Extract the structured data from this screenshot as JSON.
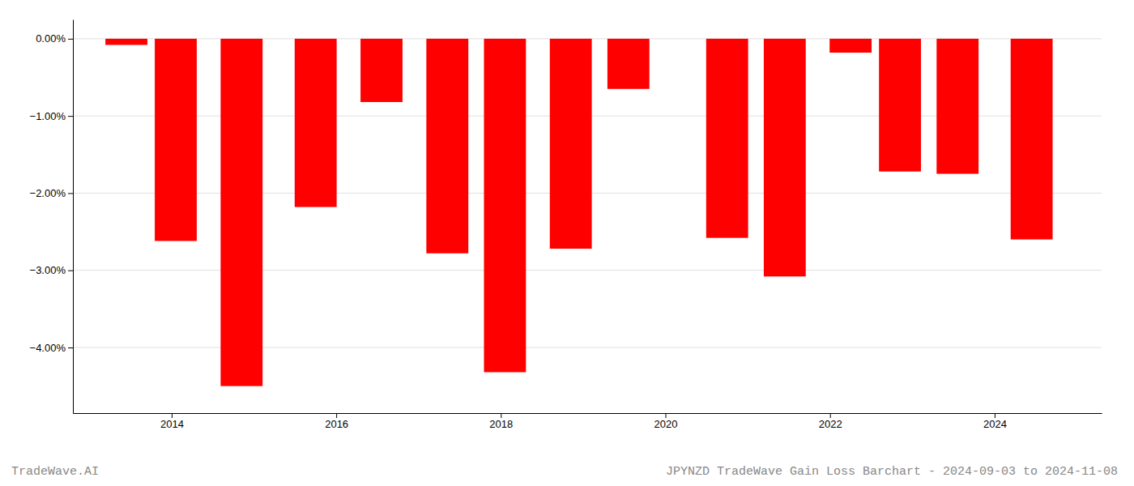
{
  "chart_data": {
    "type": "bar",
    "title": "JPYNZD TradeWave Gain Loss Barchart - 2024-09-03 to 2024-11-08",
    "annotations": [
      "TradeWave.AI"
    ],
    "x": [
      2013.45,
      2014.05,
      2014.85,
      2015.75,
      2016.55,
      2017.35,
      2018.05,
      2018.85,
      2019.55,
      2020.75,
      2021.45,
      2022.25,
      2022.85,
      2023.55,
      2024.45
    ],
    "values": [
      -0.08,
      -2.62,
      -4.5,
      -2.18,
      -0.82,
      -2.78,
      -4.32,
      -2.72,
      -0.65,
      -2.58,
      -3.08,
      -0.18,
      -1.72,
      -1.75,
      -2.6
    ],
    "color": "#ff0000",
    "xlim": [
      2012.8,
      2025.3
    ],
    "xticks": [
      2014,
      2016,
      2018,
      2020,
      2022,
      2024
    ],
    "ylim": [
      -4.85,
      0.25
    ],
    "yticks": [
      {
        "value": 0.0,
        "label": "0.00%"
      },
      {
        "value": -1.0,
        "label": "−1.00%"
      },
      {
        "value": -2.0,
        "label": "−2.00%"
      },
      {
        "value": -3.0,
        "label": "−3.00%"
      },
      {
        "value": -4.0,
        "label": "−4.00%"
      }
    ],
    "grid": true
  }
}
